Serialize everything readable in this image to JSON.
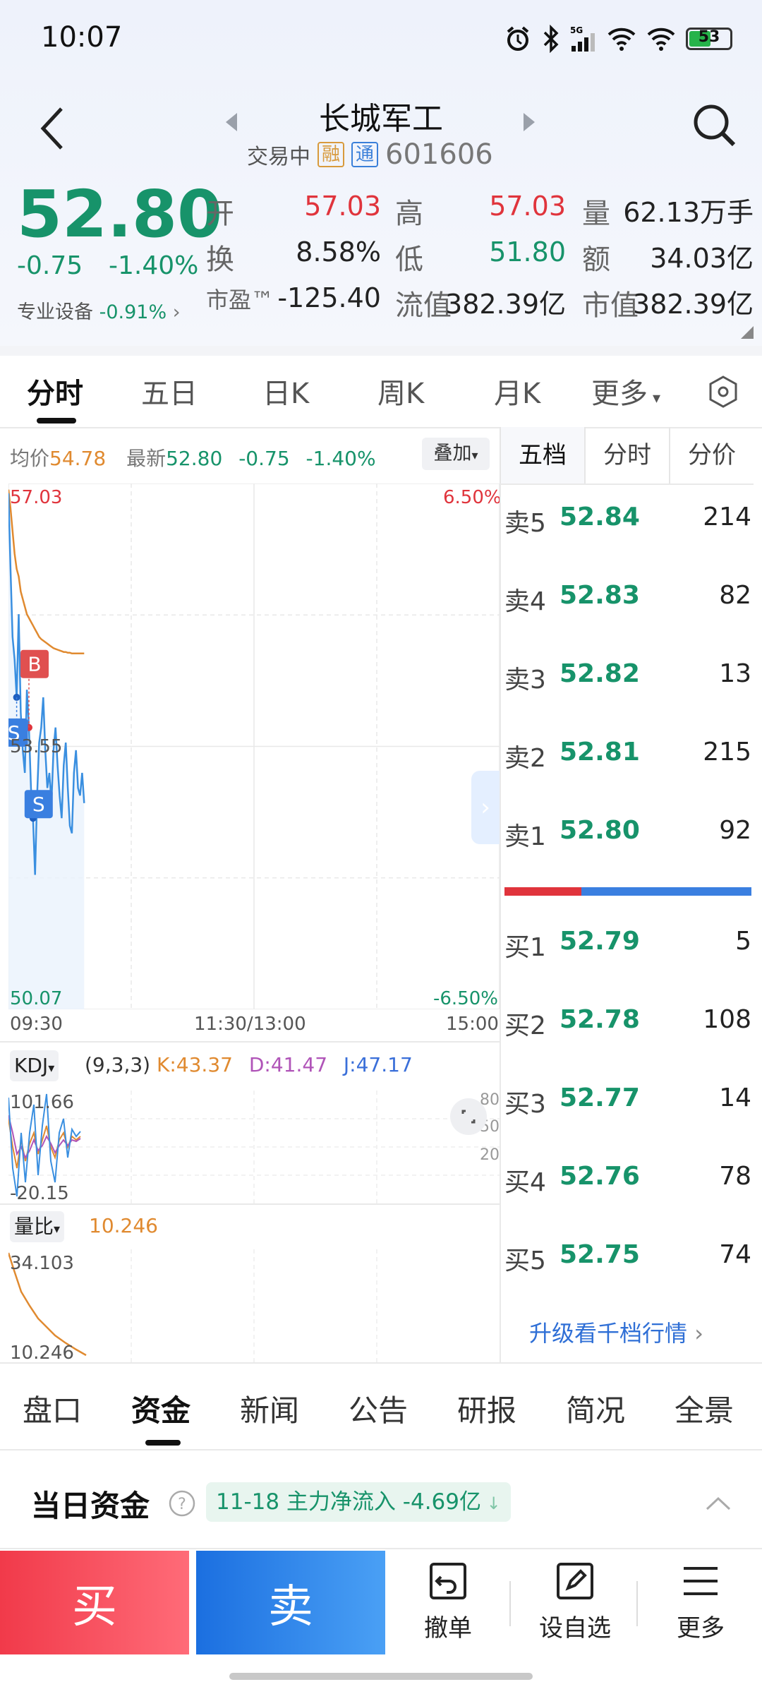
{
  "status_bar": {
    "time": "10:07",
    "battery": "53",
    "network": "5G"
  },
  "header": {
    "stock_name": "长城军工",
    "status": "交易中",
    "tag_margin": "融",
    "tag_connect": "通",
    "code": "601606"
  },
  "quote": {
    "price": "52.80",
    "change": "-0.75",
    "change_pct": "-1.40%",
    "sector_label": "专业设备",
    "sector_change": "-0.91%",
    "fields": {
      "open_label": "开",
      "open": "57.03",
      "high_label": "高",
      "high": "57.03",
      "volume_label": "量",
      "volume": "62.13万手",
      "turnover_label": "换",
      "turnover": "8.58%",
      "low_label": "低",
      "low": "51.80",
      "amount_label": "额",
      "amount": "34.03亿",
      "pe_label": "市盈™",
      "pe": "-125.40",
      "float_label": "流值",
      "float_value": "382.39亿",
      "mcap_label": "市值",
      "mcap": "382.39亿"
    }
  },
  "period_tabs": [
    "分时",
    "五日",
    "日K",
    "周K",
    "月K",
    "更多"
  ],
  "chart_header": {
    "avg_label": "均价",
    "avg": "54.78",
    "latest_label": "最新",
    "latest": "52.80",
    "change": "-0.75",
    "change_pct": "-1.40%",
    "overlay_button": "叠加"
  },
  "chart_labels": {
    "y_top": "57.03",
    "y_mid": "53.55",
    "y_bottom": "50.07",
    "pct_top": "6.50%",
    "pct_bottom": "-6.50%",
    "x_start": "09:30",
    "x_mid": "11:30/13:00",
    "x_end": "15:00",
    "marker_b": "B",
    "marker_s": "S"
  },
  "kdj": {
    "selector": "KDJ",
    "params": "(9,3,3)",
    "k": "K:43.37",
    "d": "D:41.47",
    "j": "J:47.17",
    "y_top": "101.66",
    "y_bottom": "-20.15",
    "right_80": "80",
    "right_50": "50",
    "right_20": "20"
  },
  "volume_ratio": {
    "selector": "量比",
    "value": "10.246",
    "y_top": "34.103",
    "y_bottom": "10.246"
  },
  "orderbook": {
    "tabs": [
      "五档",
      "分时",
      "分价"
    ],
    "asks": [
      {
        "label": "卖5",
        "price": "52.84",
        "volume": "214"
      },
      {
        "label": "卖4",
        "price": "52.83",
        "volume": "82"
      },
      {
        "label": "卖3",
        "price": "52.82",
        "volume": "13"
      },
      {
        "label": "卖2",
        "price": "52.81",
        "volume": "215"
      },
      {
        "label": "卖1",
        "price": "52.80",
        "volume": "92"
      }
    ],
    "bids": [
      {
        "label": "买1",
        "price": "52.79",
        "volume": "5"
      },
      {
        "label": "买2",
        "price": "52.78",
        "volume": "108"
      },
      {
        "label": "买3",
        "price": "52.77",
        "volume": "14"
      },
      {
        "label": "买4",
        "price": "52.76",
        "volume": "78"
      },
      {
        "label": "买5",
        "price": "52.75",
        "volume": "74"
      }
    ],
    "upgrade_link": "升级看千档行情"
  },
  "bottom_tabs": [
    "盘口",
    "资金",
    "新闻",
    "公告",
    "研报",
    "简况",
    "全景"
  ],
  "capital": {
    "title": "当日资金",
    "badge": "11-18 主力净流入 -4.69亿"
  },
  "actions": {
    "buy": "买",
    "sell": "卖",
    "cancel": "撤单",
    "watchlist": "设自选",
    "more": "更多"
  },
  "colors": {
    "up": "#e0343c",
    "down": "#17936a",
    "buy": "#f13a4a",
    "sell": "#1b6fe0",
    "price_line": "#3a8fe0",
    "avg_line": "#e08a30"
  },
  "chart_data": {
    "type": "line",
    "title": "",
    "x": [
      "09:30",
      "09:31",
      "09:32",
      "09:33",
      "09:34",
      "09:35",
      "09:36",
      "09:37",
      "09:38",
      "09:39",
      "09:40",
      "09:41",
      "09:42",
      "09:43",
      "09:44",
      "09:45",
      "09:46",
      "09:47",
      "09:48",
      "09:49",
      "09:50",
      "09:51",
      "09:52",
      "09:53",
      "09:54",
      "09:55",
      "09:56",
      "09:57",
      "09:58",
      "09:59",
      "10:00",
      "10:01",
      "10:02",
      "10:03",
      "10:04",
      "10:05",
      "10:06",
      "10:07"
    ],
    "series": [
      {
        "name": "price",
        "values": [
          56.9,
          55.9,
          55.0,
          54.7,
          54.2,
          55.3,
          54.0,
          53.5,
          53.2,
          54.3,
          53.8,
          53.0,
          52.6,
          51.85,
          52.9,
          53.6,
          53.8,
          54.2,
          53.5,
          53.0,
          53.2,
          52.8,
          53.5,
          53.8,
          53.3,
          52.9,
          52.6,
          53.3,
          53.6,
          53.0,
          52.5,
          52.4,
          53.2,
          53.5,
          53.0,
          52.9,
          53.2,
          52.8
        ]
      },
      {
        "name": "avg",
        "values": [
          56.95,
          56.7,
          56.4,
          56.1,
          55.9,
          55.8,
          55.6,
          55.5,
          55.4,
          55.3,
          55.25,
          55.2,
          55.15,
          55.1,
          55.05,
          55.0,
          54.97,
          54.95,
          54.93,
          54.91,
          54.89,
          54.87,
          54.85,
          54.84,
          54.83,
          54.82,
          54.81,
          54.8,
          54.8,
          54.79,
          54.79,
          54.78,
          54.78,
          54.78,
          54.78,
          54.78,
          54.78,
          54.78
        ]
      }
    ],
    "ylim": [
      50.07,
      57.03
    ],
    "xlim": [
      "09:30",
      "15:00"
    ],
    "trades": [
      {
        "type": "B",
        "x": "09:40"
      },
      {
        "type": "S",
        "x": "09:34"
      },
      {
        "type": "S",
        "x": "09:42"
      }
    ],
    "grid": true
  }
}
